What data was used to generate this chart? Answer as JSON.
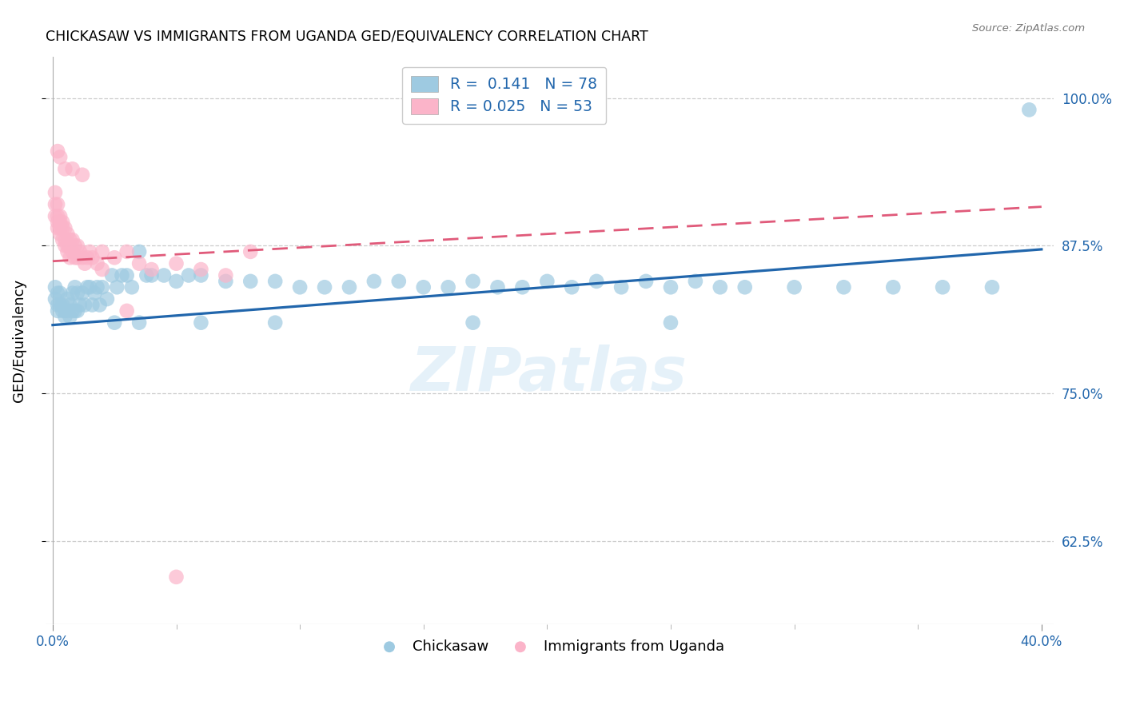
{
  "title": "CHICKASAW VS IMMIGRANTS FROM UGANDA GED/EQUIVALENCY CORRELATION CHART",
  "source": "Source: ZipAtlas.com",
  "ylabel": "GED/Equivalency",
  "color_blue": "#9ecae1",
  "color_pink": "#fbb4c9",
  "color_trend_blue": "#2166ac",
  "color_trend_pink": "#e05a7a",
  "xlim": [
    -0.003,
    0.405
  ],
  "ylim": [
    0.555,
    1.035
  ],
  "ytick_vals": [
    0.625,
    0.75,
    0.875,
    1.0
  ],
  "ytick_labels": [
    "62.5%",
    "75.0%",
    "87.5%",
    "100.0%"
  ],
  "trend_blue": [
    0.0,
    0.808,
    0.4,
    0.872
  ],
  "trend_pink": [
    0.0,
    0.862,
    0.4,
    0.908
  ],
  "watermark": "ZIPatlas",
  "legend_line1": "R =  0.141   N = 78",
  "legend_line2": "R = 0.025   N = 53",
  "chickasaw_x": [
    0.001,
    0.001,
    0.002,
    0.002,
    0.002,
    0.003,
    0.003,
    0.004,
    0.004,
    0.005,
    0.005,
    0.006,
    0.006,
    0.007,
    0.007,
    0.008,
    0.008,
    0.009,
    0.009,
    0.01,
    0.01,
    0.011,
    0.012,
    0.013,
    0.014,
    0.015,
    0.016,
    0.017,
    0.018,
    0.019,
    0.02,
    0.022,
    0.024,
    0.026,
    0.028,
    0.03,
    0.032,
    0.035,
    0.038,
    0.04,
    0.045,
    0.05,
    0.055,
    0.06,
    0.07,
    0.08,
    0.09,
    0.1,
    0.11,
    0.12,
    0.13,
    0.14,
    0.15,
    0.16,
    0.17,
    0.18,
    0.19,
    0.2,
    0.21,
    0.22,
    0.23,
    0.24,
    0.25,
    0.26,
    0.27,
    0.28,
    0.3,
    0.32,
    0.34,
    0.36,
    0.38,
    0.395,
    0.025,
    0.035,
    0.06,
    0.09,
    0.17,
    0.25
  ],
  "chickasaw_y": [
    0.84,
    0.83,
    0.835,
    0.825,
    0.82,
    0.835,
    0.825,
    0.825,
    0.82,
    0.82,
    0.815,
    0.83,
    0.82,
    0.825,
    0.815,
    0.835,
    0.82,
    0.84,
    0.82,
    0.835,
    0.82,
    0.825,
    0.835,
    0.825,
    0.84,
    0.84,
    0.825,
    0.835,
    0.84,
    0.825,
    0.84,
    0.83,
    0.85,
    0.84,
    0.85,
    0.85,
    0.84,
    0.87,
    0.85,
    0.85,
    0.85,
    0.845,
    0.85,
    0.85,
    0.845,
    0.845,
    0.845,
    0.84,
    0.84,
    0.84,
    0.845,
    0.845,
    0.84,
    0.84,
    0.845,
    0.84,
    0.84,
    0.845,
    0.84,
    0.845,
    0.84,
    0.845,
    0.84,
    0.845,
    0.84,
    0.84,
    0.84,
    0.84,
    0.84,
    0.84,
    0.84,
    0.99,
    0.81,
    0.81,
    0.81,
    0.81,
    0.81,
    0.81
  ],
  "uganda_x": [
    0.001,
    0.001,
    0.001,
    0.002,
    0.002,
    0.002,
    0.002,
    0.003,
    0.003,
    0.003,
    0.003,
    0.004,
    0.004,
    0.004,
    0.005,
    0.005,
    0.005,
    0.006,
    0.006,
    0.006,
    0.007,
    0.007,
    0.007,
    0.008,
    0.008,
    0.009,
    0.009,
    0.01,
    0.01,
    0.011,
    0.012,
    0.013,
    0.014,
    0.015,
    0.016,
    0.018,
    0.02,
    0.025,
    0.03,
    0.035,
    0.04,
    0.05,
    0.06,
    0.07,
    0.08,
    0.002,
    0.003,
    0.005,
    0.008,
    0.012,
    0.02,
    0.03,
    0.05
  ],
  "uganda_y": [
    0.92,
    0.91,
    0.9,
    0.91,
    0.9,
    0.895,
    0.89,
    0.9,
    0.895,
    0.89,
    0.885,
    0.895,
    0.89,
    0.88,
    0.89,
    0.88,
    0.875,
    0.885,
    0.875,
    0.87,
    0.88,
    0.875,
    0.865,
    0.88,
    0.87,
    0.875,
    0.865,
    0.875,
    0.865,
    0.87,
    0.865,
    0.86,
    0.865,
    0.87,
    0.865,
    0.86,
    0.87,
    0.865,
    0.87,
    0.86,
    0.855,
    0.86,
    0.855,
    0.85,
    0.87,
    0.955,
    0.95,
    0.94,
    0.94,
    0.935,
    0.855,
    0.82,
    0.595
  ]
}
